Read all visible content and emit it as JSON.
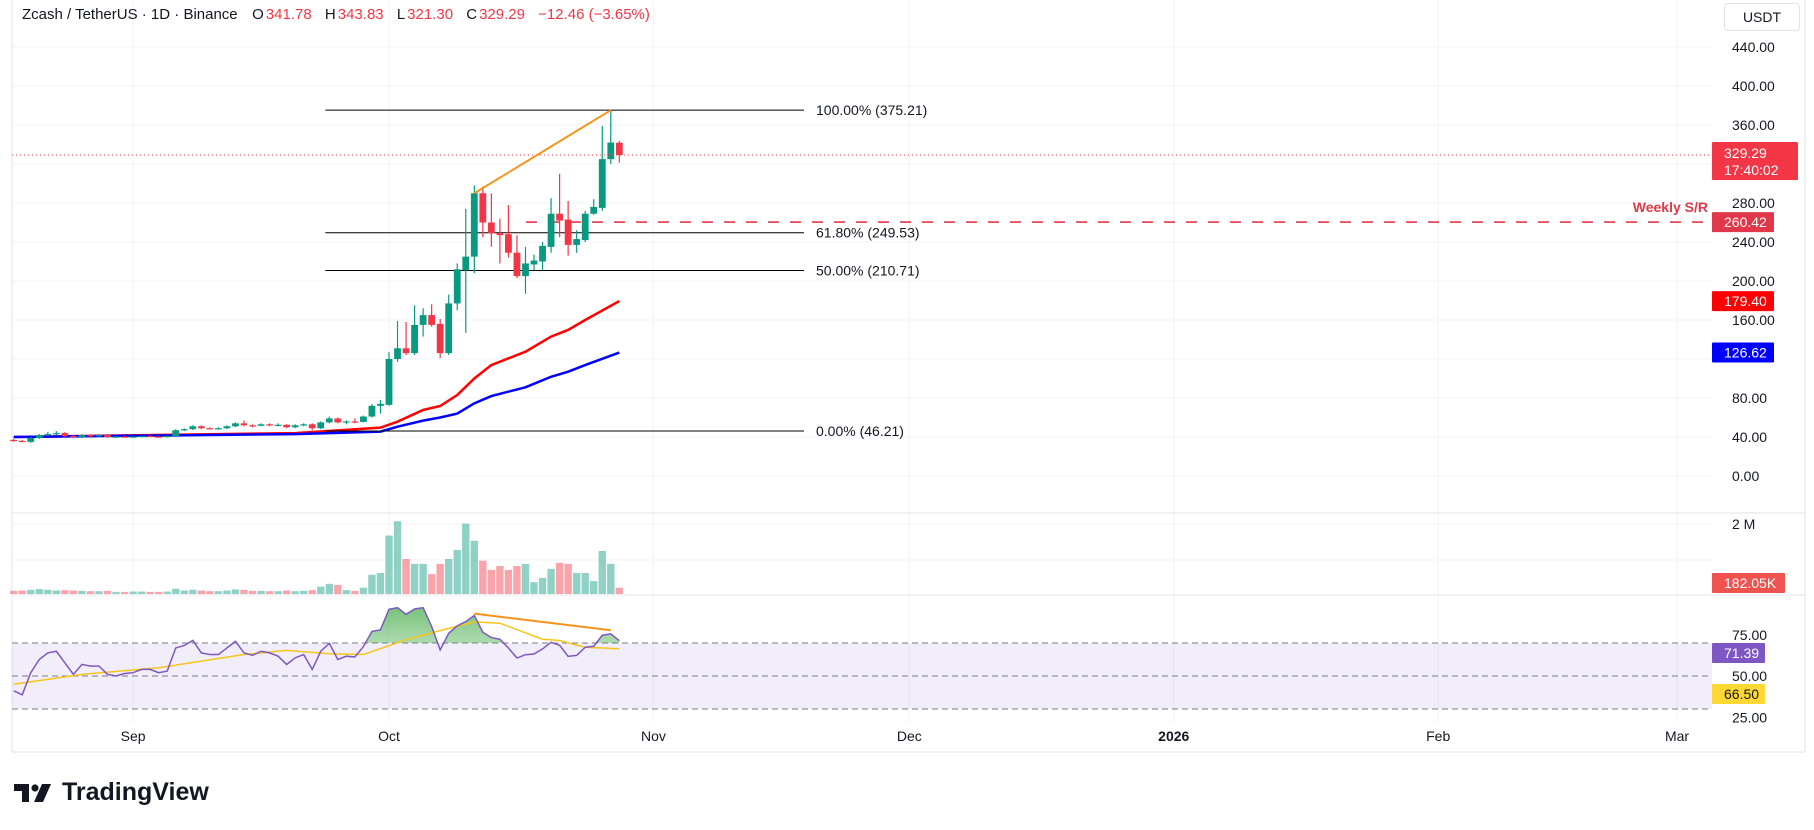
{
  "header": {
    "symbol": "Zcash / TetherUS · 1D · Binance",
    "o_label": "O",
    "o_value": "341.78",
    "h_label": "H",
    "h_value": "343.83",
    "l_label": "L",
    "l_value": "321.30",
    "c_label": "C",
    "c_value": "329.29",
    "change": "−12.46 (−3.65%)"
  },
  "currency_button": "USDT",
  "branding": "TradingView",
  "colors": {
    "up": "#089981",
    "down": "#f23645",
    "ma_fast": "#ff0000",
    "ma_slow": "#0000ff",
    "rsi": "#7e57c2",
    "rsi_ma": "#f5c518",
    "divergence": "#f7931a",
    "support": "#e03a4a"
  },
  "chart_data": {
    "type": "candlestick",
    "price_axis": {
      "ticks": [
        "440.00",
        "400.00",
        "360.00",
        "280.00",
        "240.00",
        "200.00",
        "160.00",
        "80.00",
        "40.00",
        "0.00"
      ],
      "range": [
        0,
        440
      ],
      "grid_values": [
        0,
        40,
        80,
        120,
        160,
        200,
        240,
        280,
        320,
        360,
        400,
        440
      ]
    },
    "time_axis": {
      "ticks": [
        {
          "label": "Sep",
          "date": "2025-09-01"
        },
        {
          "label": "Oct",
          "date": "2025-10-01"
        },
        {
          "label": "Nov",
          "date": "2025-11-01"
        },
        {
          "label": "Dec",
          "date": "2025-12-01"
        },
        {
          "label": "2026",
          "date": "2026-01-01",
          "bold": true
        },
        {
          "label": "Feb",
          "date": "2026-02-01"
        },
        {
          "label": "Mar",
          "date": "2026-03-01"
        }
      ]
    },
    "candles": [
      {
        "d": "2025-08-18",
        "o": 37,
        "h": 38,
        "l": 35,
        "c": 36,
        "v": 0.09
      },
      {
        "d": "2025-08-19",
        "o": 36,
        "h": 37,
        "l": 35,
        "c": 35.5,
        "v": 0.1
      },
      {
        "d": "2025-08-20",
        "o": 35,
        "h": 40,
        "l": 34,
        "c": 39,
        "v": 0.12
      },
      {
        "d": "2025-08-21",
        "o": 39,
        "h": 43,
        "l": 38,
        "c": 42,
        "v": 0.14
      },
      {
        "d": "2025-08-22",
        "o": 42,
        "h": 45,
        "l": 41,
        "c": 43,
        "v": 0.12
      },
      {
        "d": "2025-08-23",
        "o": 43,
        "h": 46,
        "l": 42,
        "c": 44,
        "v": 0.1
      },
      {
        "d": "2025-08-24",
        "o": 44,
        "h": 45,
        "l": 40,
        "c": 41,
        "v": 0.11
      },
      {
        "d": "2025-08-25",
        "o": 41,
        "h": 42,
        "l": 39,
        "c": 40,
        "v": 0.1
      },
      {
        "d": "2025-08-26",
        "o": 40,
        "h": 43,
        "l": 39,
        "c": 42,
        "v": 0.09
      },
      {
        "d": "2025-08-27",
        "o": 42,
        "h": 43,
        "l": 40,
        "c": 41,
        "v": 0.08
      },
      {
        "d": "2025-08-28",
        "o": 41,
        "h": 43,
        "l": 40,
        "c": 42,
        "v": 0.08
      },
      {
        "d": "2025-08-29",
        "o": 42,
        "h": 43,
        "l": 39,
        "c": 40,
        "v": 0.09
      },
      {
        "d": "2025-08-30",
        "o": 40,
        "h": 41,
        "l": 39,
        "c": 40.5,
        "v": 0.06
      },
      {
        "d": "2025-08-31",
        "o": 40.5,
        "h": 41,
        "l": 39.5,
        "c": 40,
        "v": 0.06
      },
      {
        "d": "2025-09-01",
        "o": 40,
        "h": 41,
        "l": 39,
        "c": 40.5,
        "v": 0.07
      },
      {
        "d": "2025-09-02",
        "o": 40.5,
        "h": 41.5,
        "l": 39.5,
        "c": 41,
        "v": 0.07
      },
      {
        "d": "2025-09-03",
        "o": 41,
        "h": 42,
        "l": 40,
        "c": 40.5,
        "v": 0.06
      },
      {
        "d": "2025-09-04",
        "o": 40.5,
        "h": 41,
        "l": 39.5,
        "c": 40,
        "v": 0.06
      },
      {
        "d": "2025-09-05",
        "o": 40,
        "h": 41.5,
        "l": 39.5,
        "c": 41,
        "v": 0.07
      },
      {
        "d": "2025-09-06",
        "o": 41,
        "h": 48,
        "l": 40,
        "c": 47,
        "v": 0.15
      },
      {
        "d": "2025-09-07",
        "o": 47,
        "h": 49,
        "l": 46,
        "c": 48,
        "v": 0.1
      },
      {
        "d": "2025-09-08",
        "o": 48,
        "h": 52,
        "l": 47,
        "c": 51,
        "v": 0.12
      },
      {
        "d": "2025-09-09",
        "o": 51,
        "h": 52,
        "l": 48,
        "c": 49,
        "v": 0.1
      },
      {
        "d": "2025-09-10",
        "o": 49,
        "h": 50,
        "l": 48,
        "c": 48.5,
        "v": 0.08
      },
      {
        "d": "2025-09-11",
        "o": 48.5,
        "h": 50,
        "l": 47.5,
        "c": 49,
        "v": 0.08
      },
      {
        "d": "2025-09-12",
        "o": 49,
        "h": 52,
        "l": 48,
        "c": 51,
        "v": 0.1
      },
      {
        "d": "2025-09-13",
        "o": 51,
        "h": 55,
        "l": 50,
        "c": 54,
        "v": 0.13
      },
      {
        "d": "2025-09-14",
        "o": 54,
        "h": 57,
        "l": 51,
        "c": 52,
        "v": 0.12
      },
      {
        "d": "2025-09-15",
        "o": 52,
        "h": 53,
        "l": 50,
        "c": 51.5,
        "v": 0.09
      },
      {
        "d": "2025-09-16",
        "o": 51.5,
        "h": 54,
        "l": 51,
        "c": 53,
        "v": 0.09
      },
      {
        "d": "2025-09-17",
        "o": 53,
        "h": 54,
        "l": 51,
        "c": 52,
        "v": 0.08
      },
      {
        "d": "2025-09-18",
        "o": 52,
        "h": 54,
        "l": 51,
        "c": 52.5,
        "v": 0.08
      },
      {
        "d": "2025-09-19",
        "o": 52.5,
        "h": 53,
        "l": 49,
        "c": 50,
        "v": 0.1
      },
      {
        "d": "2025-09-20",
        "o": 50,
        "h": 53,
        "l": 49,
        "c": 52,
        "v": 0.08
      },
      {
        "d": "2025-09-21",
        "o": 52,
        "h": 54,
        "l": 51,
        "c": 53,
        "v": 0.09
      },
      {
        "d": "2025-09-22",
        "o": 53,
        "h": 54,
        "l": 47,
        "c": 49,
        "v": 0.11
      },
      {
        "d": "2025-09-23",
        "o": 49,
        "h": 56,
        "l": 48,
        "c": 55,
        "v": 0.21
      },
      {
        "d": "2025-09-24",
        "o": 55,
        "h": 61,
        "l": 54,
        "c": 59,
        "v": 0.29
      },
      {
        "d": "2025-09-25",
        "o": 59,
        "h": 60,
        "l": 54,
        "c": 55,
        "v": 0.26
      },
      {
        "d": "2025-09-26",
        "o": 55,
        "h": 57,
        "l": 53,
        "c": 56,
        "v": 0.11
      },
      {
        "d": "2025-09-27",
        "o": 56,
        "h": 59,
        "l": 54,
        "c": 55.5,
        "v": 0.09
      },
      {
        "d": "2025-09-28",
        "o": 55.5,
        "h": 62,
        "l": 55,
        "c": 61,
        "v": 0.18
      },
      {
        "d": "2025-09-29",
        "o": 61,
        "h": 74,
        "l": 60,
        "c": 72,
        "v": 0.55
      },
      {
        "d": "2025-09-30",
        "o": 72,
        "h": 78,
        "l": 64,
        "c": 74,
        "v": 0.6
      },
      {
        "d": "2025-10-01",
        "o": 73,
        "h": 127,
        "l": 72,
        "c": 120,
        "v": 1.67
      },
      {
        "d": "2025-10-02",
        "o": 120,
        "h": 159,
        "l": 117,
        "c": 131,
        "v": 2.08
      },
      {
        "d": "2025-10-03",
        "o": 131,
        "h": 158,
        "l": 124,
        "c": 126,
        "v": 1.0
      },
      {
        "d": "2025-10-04",
        "o": 126,
        "h": 175,
        "l": 124,
        "c": 155,
        "v": 0.86
      },
      {
        "d": "2025-10-05",
        "o": 155,
        "h": 172,
        "l": 143,
        "c": 165,
        "v": 0.86
      },
      {
        "d": "2025-10-06",
        "o": 165,
        "h": 176,
        "l": 153,
        "c": 155,
        "v": 0.57
      },
      {
        "d": "2025-10-07",
        "o": 156,
        "h": 161,
        "l": 121,
        "c": 126,
        "v": 0.86
      },
      {
        "d": "2025-10-08",
        "o": 126,
        "h": 186,
        "l": 124,
        "c": 177,
        "v": 1.0
      },
      {
        "d": "2025-10-09",
        "o": 177,
        "h": 218,
        "l": 170,
        "c": 212,
        "v": 1.26
      },
      {
        "d": "2025-10-10",
        "o": 211,
        "h": 274,
        "l": 147,
        "c": 225,
        "v": 2.01
      },
      {
        "d": "2025-10-11",
        "o": 225,
        "h": 298,
        "l": 208,
        "c": 290,
        "v": 1.52
      },
      {
        "d": "2025-10-12",
        "o": 290,
        "h": 297,
        "l": 245,
        "c": 260,
        "v": 0.95
      },
      {
        "d": "2025-10-13",
        "o": 260,
        "h": 290,
        "l": 235,
        "c": 249,
        "v": 0.69
      },
      {
        "d": "2025-10-14",
        "o": 249,
        "h": 264,
        "l": 218,
        "c": 247,
        "v": 0.8
      },
      {
        "d": "2025-10-15",
        "o": 248,
        "h": 278,
        "l": 224,
        "c": 229,
        "v": 0.69
      },
      {
        "d": "2025-10-16",
        "o": 229,
        "h": 247,
        "l": 203,
        "c": 205,
        "v": 0.8
      },
      {
        "d": "2025-10-17",
        "o": 205,
        "h": 235,
        "l": 187,
        "c": 218,
        "v": 0.86
      },
      {
        "d": "2025-10-18",
        "o": 217,
        "h": 227,
        "l": 211,
        "c": 221,
        "v": 0.34
      },
      {
        "d": "2025-10-19",
        "o": 220,
        "h": 240,
        "l": 211,
        "c": 236,
        "v": 0.46
      },
      {
        "d": "2025-10-20",
        "o": 235,
        "h": 285,
        "l": 229,
        "c": 269,
        "v": 0.72
      },
      {
        "d": "2025-10-21",
        "o": 269,
        "h": 310,
        "l": 245,
        "c": 262,
        "v": 0.89
      },
      {
        "d": "2025-10-22",
        "o": 263,
        "h": 282,
        "l": 226,
        "c": 237,
        "v": 0.86
      },
      {
        "d": "2025-10-23",
        "o": 237,
        "h": 252,
        "l": 229,
        "c": 243,
        "v": 0.6
      },
      {
        "d": "2025-10-24",
        "o": 242,
        "h": 272,
        "l": 240,
        "c": 269,
        "v": 0.6
      },
      {
        "d": "2025-10-25",
        "o": 269,
        "h": 284,
        "l": 268,
        "c": 276,
        "v": 0.37
      },
      {
        "d": "2025-10-26",
        "o": 275,
        "h": 359,
        "l": 272,
        "c": 325,
        "v": 1.23
      },
      {
        "d": "2025-10-27",
        "o": 325,
        "h": 375.21,
        "l": 320,
        "c": 342,
        "v": 0.86
      },
      {
        "d": "2025-10-28",
        "o": 341.78,
        "h": 343.83,
        "l": 321.3,
        "c": 329.29,
        "v": 0.18
      }
    ],
    "moving_averages": [
      {
        "color_key": "ma_fast",
        "last_label": "179.40",
        "points": [
          [
            "2025-08-18",
            40
          ],
          [
            "2025-09-20",
            44
          ],
          [
            "2025-09-30",
            49.6
          ],
          [
            "2025-10-02",
            55.7
          ],
          [
            "2025-10-05",
            67.7
          ],
          [
            "2025-10-07",
            71.8
          ],
          [
            "2025-10-09",
            83
          ],
          [
            "2025-10-11",
            100
          ],
          [
            "2025-10-13",
            113.8
          ],
          [
            "2025-10-17",
            127.5
          ],
          [
            "2025-10-20",
            143
          ],
          [
            "2025-10-22",
            149.8
          ],
          [
            "2025-10-24",
            160
          ],
          [
            "2025-10-28",
            179.4
          ]
        ]
      },
      {
        "color_key": "ma_slow",
        "last_label": "126.62",
        "points": [
          [
            "2025-08-18",
            40
          ],
          [
            "2025-09-20",
            43
          ],
          [
            "2025-09-30",
            45.5
          ],
          [
            "2025-10-02",
            50.6
          ],
          [
            "2025-10-05",
            56.8
          ],
          [
            "2025-10-07",
            60
          ],
          [
            "2025-10-09",
            64
          ],
          [
            "2025-10-11",
            74.5
          ],
          [
            "2025-10-13",
            82
          ],
          [
            "2025-10-17",
            91
          ],
          [
            "2025-10-20",
            101.8
          ],
          [
            "2025-10-22",
            107
          ],
          [
            "2025-10-24",
            113.8
          ],
          [
            "2025-10-28",
            126.62
          ]
        ]
      }
    ],
    "last_price": {
      "value": 329.29,
      "label": "329.29",
      "countdown": "17:40:02"
    },
    "fibonacci": {
      "from_date": "2025-09-24",
      "to_date": "2025-10-14",
      "levels": [
        {
          "label": "100.00% (375.21)",
          "value": 375.21
        },
        {
          "label": "61.80% (249.53)",
          "value": 249.53
        },
        {
          "label": "50.00% (210.71)",
          "value": 210.71
        },
        {
          "label": "0.00% (46.21)",
          "value": 46.21
        }
      ]
    },
    "support_resistance": {
      "label": "Weekly S/R",
      "value": 260.42,
      "value_label": "260.42",
      "from_date": "2025-10-18"
    },
    "price_divergence": [
      [
        "2025-10-11",
        290
      ],
      [
        "2025-10-27",
        375.21
      ]
    ],
    "volume": {
      "max_tick": "2 M",
      "max_tick_value": 2,
      "last_label": "182.05K",
      "unit": "M"
    },
    "rsi": {
      "levels": [
        70,
        50,
        30
      ],
      "ticks": [
        "75.00",
        "50.00",
        "25.00"
      ],
      "last_label": "71.39",
      "ma_last_label": "66.50",
      "values": [
        41,
        38.6,
        52,
        60,
        64,
        65,
        58,
        51,
        57,
        56,
        56,
        51,
        50,
        51.5,
        52,
        54,
        54,
        52,
        53,
        67,
        68.5,
        71.6,
        64,
        63,
        63,
        67,
        71,
        64,
        62.5,
        65,
        64,
        62,
        57,
        61,
        63,
        54,
        65,
        69.8,
        60,
        62,
        61.5,
        67.8,
        77,
        78,
        90.4,
        91.4,
        87.4,
        90.6,
        91.4,
        80,
        65.8,
        75.9,
        80.4,
        83,
        86.7,
        76.5,
        73.3,
        72.3,
        67,
        60.9,
        62.9,
        63.3,
        66.4,
        70.4,
        68.6,
        61.9,
        62.5,
        67.4,
        68,
        74.7,
        75.5,
        71.39
      ],
      "ma_points": [
        [
          "2025-08-18",
          45
        ],
        [
          "2025-08-26",
          51
        ],
        [
          "2025-09-04",
          55
        ],
        [
          "2025-09-14",
          63
        ],
        [
          "2025-09-19",
          65.5
        ],
        [
          "2025-09-24",
          63.5
        ],
        [
          "2025-09-28",
          63
        ],
        [
          "2025-10-03",
          72
        ],
        [
          "2025-10-07",
          77.5
        ],
        [
          "2025-10-11",
          82.8
        ],
        [
          "2025-10-14",
          82
        ],
        [
          "2025-10-19",
          72.3
        ],
        [
          "2025-10-21",
          71.5
        ],
        [
          "2025-10-24",
          67.4
        ],
        [
          "2025-10-28",
          66.5
        ]
      ],
      "divergence": [
        [
          "2025-10-11",
          87.8
        ],
        [
          "2025-10-27",
          77.7
        ]
      ]
    }
  }
}
